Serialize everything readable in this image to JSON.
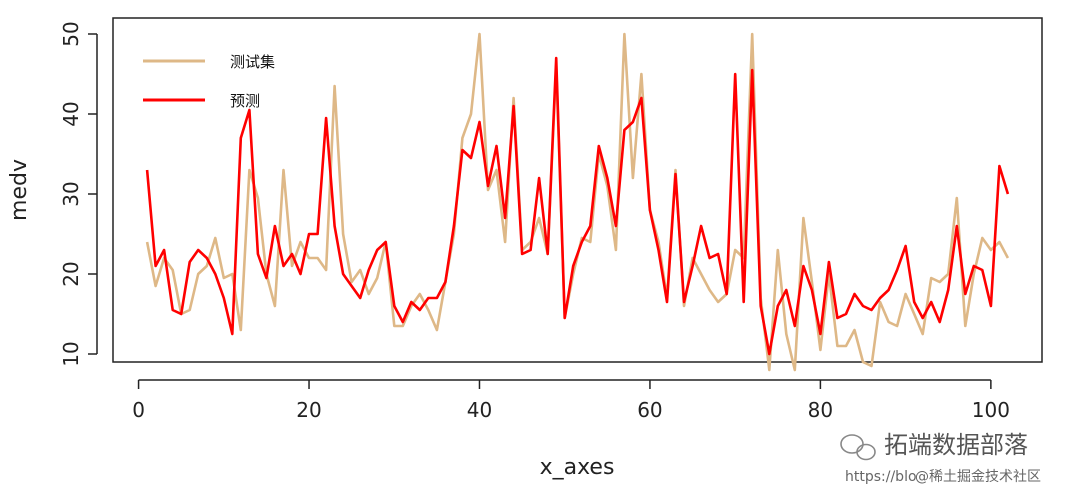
{
  "chart_data": {
    "type": "line",
    "xlabel": "x_axes",
    "ylabel": "medv",
    "xlim": [
      -3,
      106
    ],
    "ylim": [
      9,
      52
    ],
    "xticks": [
      0,
      20,
      40,
      60,
      80,
      100
    ],
    "yticks": [
      10,
      20,
      30,
      40,
      50
    ],
    "legend_position": "top-left",
    "x": [
      1,
      2,
      3,
      4,
      5,
      6,
      7,
      8,
      9,
      10,
      11,
      12,
      13,
      14,
      15,
      16,
      17,
      18,
      19,
      20,
      21,
      22,
      23,
      24,
      25,
      26,
      27,
      28,
      29,
      30,
      31,
      32,
      33,
      34,
      35,
      36,
      37,
      38,
      39,
      40,
      41,
      42,
      43,
      44,
      45,
      46,
      47,
      48,
      49,
      50,
      51,
      52,
      53,
      54,
      55,
      56,
      57,
      58,
      59,
      60,
      61,
      62,
      63,
      64,
      65,
      66,
      67,
      68,
      69,
      70,
      71,
      72,
      73,
      74,
      75,
      76,
      77,
      78,
      79,
      80,
      81,
      82,
      83,
      84,
      85,
      86,
      87,
      88,
      89,
      90,
      91,
      92,
      93,
      94,
      95,
      96,
      97,
      98,
      99,
      100,
      101,
      102
    ],
    "series": [
      {
        "name": "测试集",
        "color": "#DEB887",
        "values": [
          24,
          18.5,
          22,
          20.5,
          15,
          15.5,
          20,
          21,
          24.5,
          19.5,
          20,
          13,
          33,
          29.5,
          20,
          16,
          33,
          21,
          24,
          22,
          22,
          20.5,
          43.5,
          25,
          19,
          20.5,
          17.5,
          19.5,
          24,
          13.5,
          13.5,
          16,
          17.5,
          15.5,
          13,
          19,
          25,
          37,
          40,
          50,
          30.5,
          33,
          24,
          42,
          23,
          24,
          27,
          22.5,
          46,
          14.5,
          20,
          24.5,
          24,
          35,
          31,
          23,
          50,
          32,
          45,
          28,
          24,
          17,
          33,
          16,
          22,
          20,
          18,
          16.5,
          17.5,
          23,
          22,
          50,
          17,
          8,
          23,
          12.5,
          8,
          27,
          19,
          10.5,
          20,
          11,
          11,
          13,
          9,
          8.5,
          16.5,
          14,
          13.5,
          17.5,
          15,
          12.5,
          19.5,
          19,
          20,
          29.5,
          13.5,
          20,
          24.5,
          23,
          24,
          22
        ]
      },
      {
        "name": "预测",
        "color": "#FF0000",
        "values": [
          33,
          21,
          23,
          15.5,
          15,
          21.5,
          23,
          22,
          20,
          17,
          12.5,
          37,
          40.5,
          22.5,
          19.5,
          26,
          21,
          22.5,
          20,
          25,
          25,
          39.5,
          26,
          20,
          18.5,
          17,
          20.5,
          23,
          24,
          16,
          14,
          16.5,
          15.5,
          17,
          17,
          19,
          26,
          35.5,
          34.5,
          39,
          31,
          36,
          27,
          41,
          22.5,
          23,
          32,
          22.5,
          47,
          14.5,
          21,
          24,
          26,
          36,
          32,
          26,
          38,
          39,
          42,
          28,
          23,
          16.5,
          32.5,
          16.5,
          21,
          26,
          22,
          22.5,
          17.5,
          45,
          16.5,
          45.5,
          16,
          10,
          16,
          18,
          13.5,
          21,
          18,
          12.5,
          21.5,
          14.5,
          15,
          17.5,
          16,
          15.5,
          17,
          18,
          20.5,
          23.5,
          16.5,
          14.5,
          16.5,
          14,
          18,
          26,
          17.5,
          21,
          20.5,
          16,
          33.5,
          30
        ]
      }
    ]
  },
  "watermark": {
    "brand": "拓端数据部落",
    "sub_faint": "https://blo",
    "sub": "@稀土掘金技术社区"
  }
}
